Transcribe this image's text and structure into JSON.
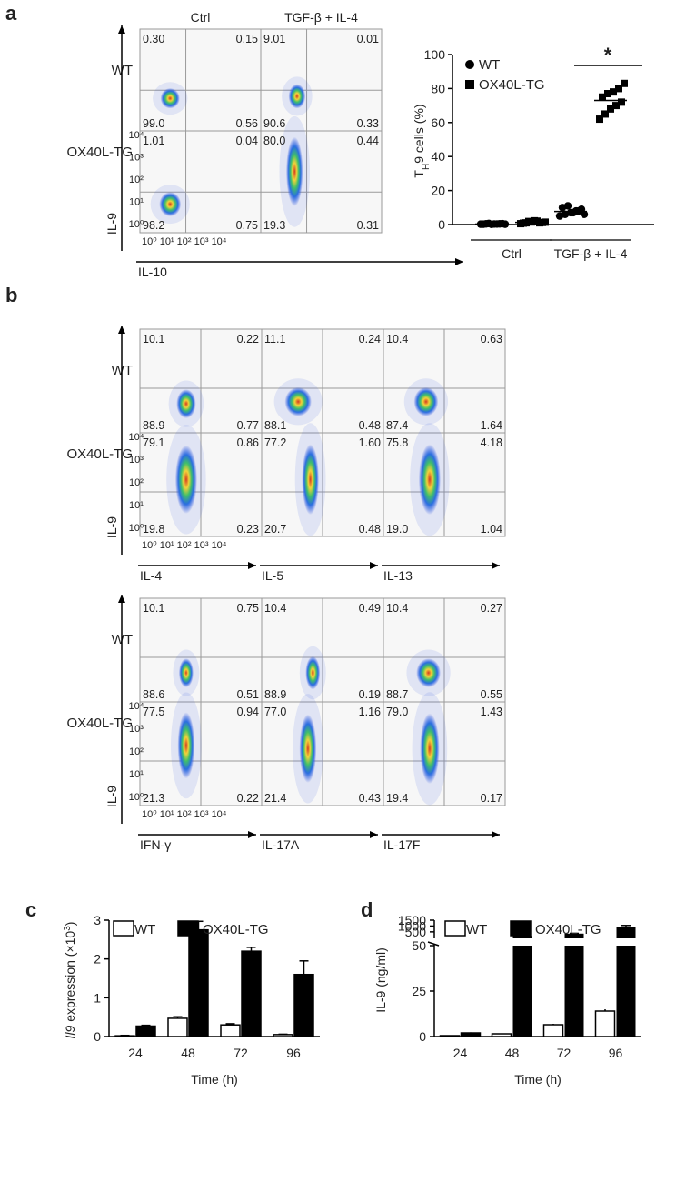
{
  "panel_a": {
    "label": "a",
    "columns": [
      "Ctrl",
      "TGF-β + IL-4"
    ],
    "rows": [
      "WT",
      "OX40L-TG"
    ],
    "y_axis": "IL-9",
    "x_axis": "IL-10",
    "quadrants": [
      [
        [
          "0.30",
          "0.15",
          "99.0",
          "0.56"
        ],
        [
          "9.01",
          "0.01",
          "90.6",
          "0.33"
        ]
      ],
      [
        [
          "1.01",
          "0.04",
          "98.2",
          "0.75"
        ],
        [
          "80.0",
          "0.44",
          "19.3",
          "0.31"
        ]
      ]
    ]
  },
  "panel_b": {
    "label": "b",
    "rows": [
      "WT",
      "OX40L-TG"
    ],
    "y_axis": "IL-9",
    "groups": [
      {
        "columns": [
          "IL-4",
          "IL-5",
          "IL-13"
        ],
        "quadrants": [
          [
            [
              "10.1",
              "0.22",
              "88.9",
              "0.77"
            ],
            [
              "11.1",
              "0.24",
              "88.1",
              "0.48"
            ],
            [
              "10.4",
              "0.63",
              "87.4",
              "1.64"
            ]
          ],
          [
            [
              "79.1",
              "0.86",
              "19.8",
              "0.23"
            ],
            [
              "77.2",
              "1.60",
              "20.7",
              "0.48"
            ],
            [
              "75.8",
              "4.18",
              "19.0",
              "1.04"
            ]
          ]
        ]
      },
      {
        "columns": [
          "IFN-γ",
          "IL-17A",
          "IL-17F"
        ],
        "quadrants": [
          [
            [
              "10.1",
              "0.75",
              "88.6",
              "0.51"
            ],
            [
              "10.4",
              "0.49",
              "88.9",
              "0.19"
            ],
            [
              "10.4",
              "0.27",
              "88.7",
              "0.55"
            ]
          ],
          [
            [
              "77.5",
              "0.94",
              "21.3",
              "0.22"
            ],
            [
              "77.0",
              "1.16",
              "21.4",
              "0.43"
            ],
            [
              "79.0",
              "1.43",
              "19.4",
              "0.17"
            ]
          ]
        ]
      }
    ]
  },
  "flow_ticks": {
    "y": [
      "10⁰",
      "10¹",
      "10²",
      "10³",
      "10⁴"
    ],
    "x": "10⁰ 10¹ 10² 10³ 10⁴"
  },
  "colors": {
    "bar_wt": "#ffffff",
    "bar_tg": "#000000",
    "axis": "#000000"
  },
  "chart_data": [
    {
      "type": "scatter",
      "panel": "a",
      "ylabel": "TH9 cells (%)",
      "ylabel_main": "T",
      "ylabel_sub": "H",
      "ylabel_rest": "9 cells (%)",
      "ylim": [
        0,
        100
      ],
      "yticks": [
        0,
        20,
        40,
        60,
        80,
        100
      ],
      "groups": [
        "Ctrl",
        "TGF-β + IL-4"
      ],
      "series": [
        {
          "name": "WT",
          "marker": "circle",
          "values": [
            [
              0.2,
              0.4,
              0.1,
              0.3,
              0.5,
              0.2,
              0.6,
              0.3,
              0.4,
              0.2
            ],
            [
              5,
              6,
              7,
              8,
              9,
              10,
              11,
              7,
              8,
              6
            ]
          ]
        },
        {
          "name": "OX40L-TG",
          "marker": "square",
          "values": [
            [
              0.5,
              1.0,
              1.5,
              2.0,
              1.2,
              0.8,
              1.8,
              2.2,
              1.0,
              1.4
            ],
            [
              62,
              65,
              68,
              70,
              72,
              75,
              77,
              78,
              80,
              83
            ]
          ]
        }
      ],
      "means": [
        [
          0.3,
          1.3
        ],
        [
          7.7,
          73
        ]
      ],
      "significance": "*",
      "legend": "top-right"
    },
    {
      "type": "bar",
      "panel": "c",
      "panel_label": "c",
      "title": "",
      "ylabel": "Il9 expression (×10³)",
      "ylabel_italic": "Il9",
      "ylabel_rest": " expression (×10",
      "ylabel_sup": "3",
      "ylabel_close": ")",
      "xlabel": "Time (h)",
      "categories": [
        "24",
        "48",
        "72",
        "96"
      ],
      "ylim": [
        0,
        3
      ],
      "yticks": [
        0,
        1,
        2,
        3
      ],
      "series": [
        {
          "name": "WT",
          "values": [
            0.02,
            0.47,
            0.3,
            0.05
          ],
          "errors": [
            0.01,
            0.04,
            0.03,
            0.01
          ]
        },
        {
          "name": "OX40L-TG",
          "values": [
            0.27,
            2.75,
            2.2,
            1.6
          ],
          "errors": [
            0.02,
            0.22,
            0.1,
            0.35
          ]
        }
      ],
      "legend": "top-left"
    },
    {
      "type": "bar",
      "panel": "d",
      "panel_label": "d",
      "title": "",
      "ylabel": "IL-9 (ng/ml)",
      "xlabel": "Time (h)",
      "categories": [
        "24",
        "48",
        "72",
        "96"
      ],
      "broken_axis": {
        "lower": [
          0,
          50
        ],
        "upper": [
          100,
          1500
        ],
        "yticks_lower": [
          0,
          25,
          50
        ],
        "yticks_upper": [
          500,
          1000,
          1500
        ]
      },
      "series": [
        {
          "name": "WT",
          "values": [
            0.5,
            1.5,
            6.5,
            14
          ],
          "errors": [
            0.2,
            0.2,
            0.5,
            1
          ]
        },
        {
          "name": "OX40L-TG",
          "values": [
            2,
            150,
            350,
            950
          ],
          "errors": [
            0.3,
            10,
            25,
            100
          ]
        }
      ],
      "legend": "top-left"
    }
  ]
}
